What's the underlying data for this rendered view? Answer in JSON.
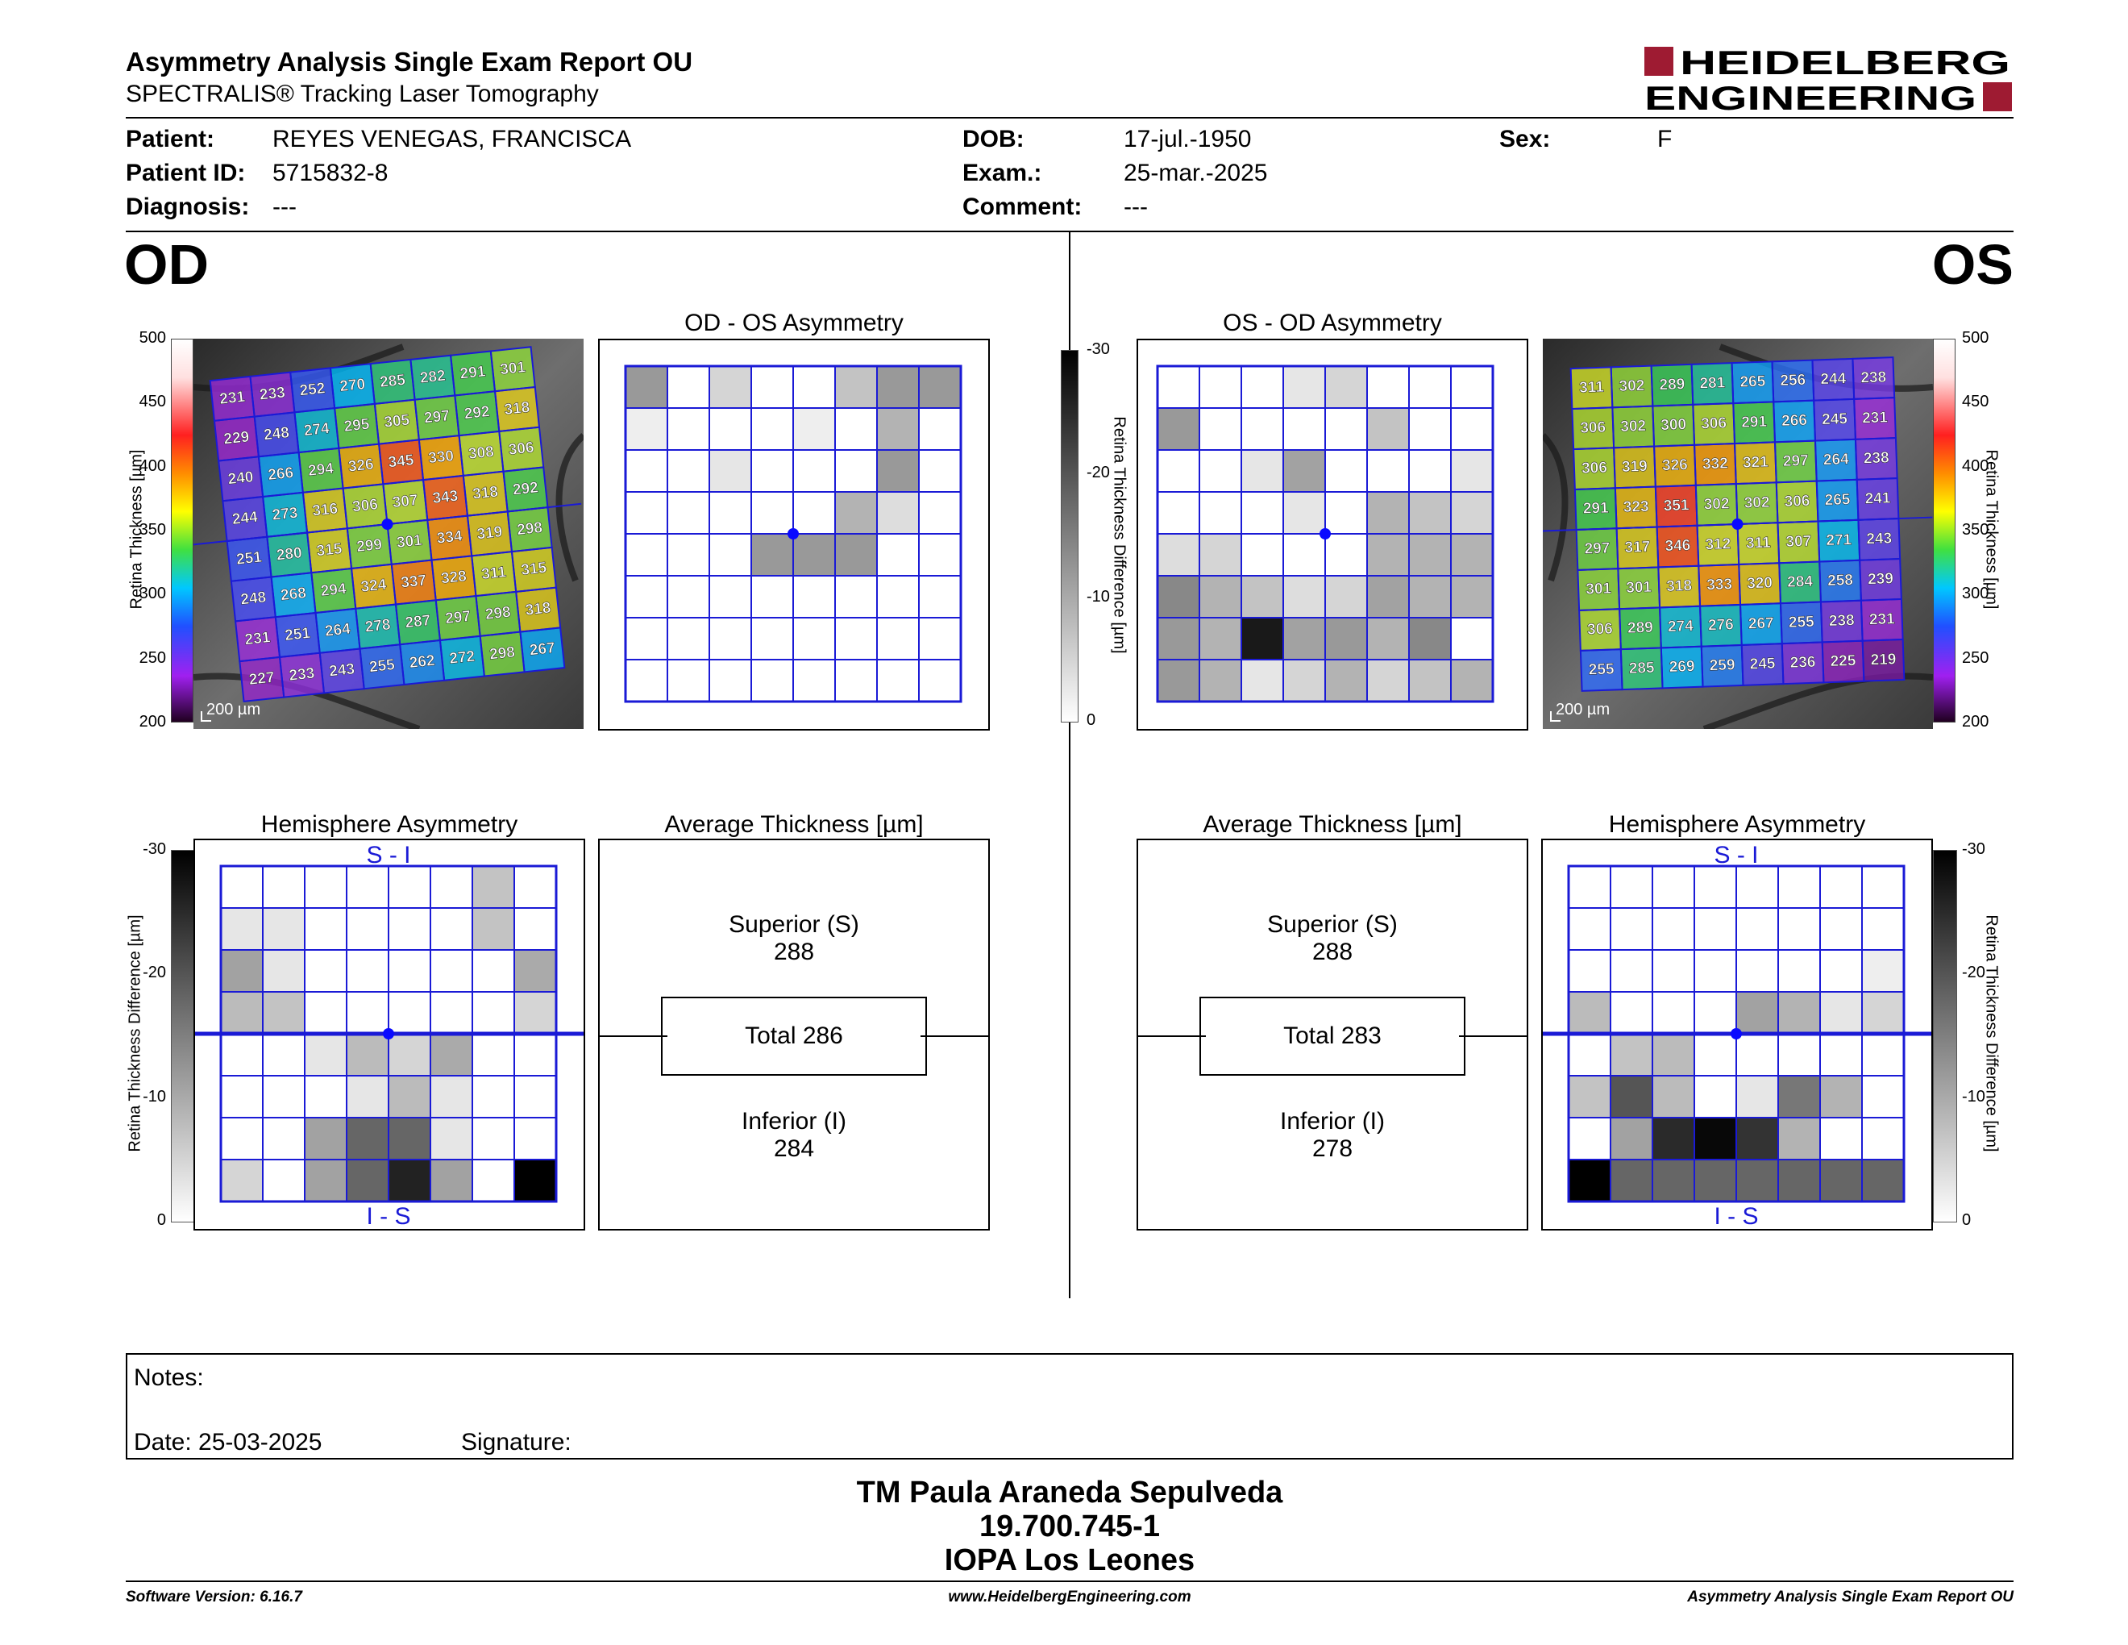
{
  "header": {
    "title": "Asymmetry Analysis Single Exam Report OU",
    "subtitle": "SPECTRALIS® Tracking Laser Tomography",
    "logo_line1": "HEIDELBERG",
    "logo_line2": "ENGINEERING"
  },
  "patient": {
    "patient_label": "Patient:",
    "patient_value": "REYES VENEGAS, FRANCISCA",
    "id_label": "Patient ID:",
    "id_value": "5715832-8",
    "diag_label": "Diagnosis:",
    "diag_value": "---",
    "dob_label": "DOB:",
    "dob_value": "17-jul.-1950",
    "exam_label": "Exam.:",
    "exam_value": "25-mar.-2025",
    "comment_label": "Comment:",
    "comment_value": "---",
    "sex_label": "Sex:",
    "sex_value": "F"
  },
  "eyes": {
    "od": "OD",
    "os": "OS"
  },
  "titles": {
    "od_os": "OD - OS Asymmetry",
    "os_od": "OS - OD Asymmetry",
    "hemi": "Hemisphere Asymmetry",
    "avg": "Average Thickness [µm]"
  },
  "scales": {
    "thickness_label": "Retina  Thickness [µm]",
    "thickness_ticks": [
      "500",
      "450",
      "400",
      "350",
      "300",
      "250",
      "200"
    ],
    "diff_label": "Retina Thickness Difference [µm]",
    "diff_ticks": [
      "-30",
      "-20",
      "-10",
      "0"
    ],
    "scalebar": "200 µm"
  },
  "hemi_labels": {
    "si": "S - I",
    "is": "I - S"
  },
  "od_thickness": [
    [
      "231",
      "233",
      "252",
      "270",
      "285",
      "282",
      "291",
      "301"
    ],
    [
      "229",
      "248",
      "274",
      "295",
      "305",
      "297",
      "292",
      "318"
    ],
    [
      "240",
      "266",
      "294",
      "326",
      "345",
      "330",
      "308",
      "306"
    ],
    [
      "244",
      "273",
      "316",
      "306",
      "307",
      "343",
      "318",
      "292"
    ],
    [
      "251",
      "280",
      "315",
      "299",
      "301",
      "334",
      "319",
      "298"
    ],
    [
      "248",
      "268",
      "294",
      "324",
      "337",
      "328",
      "311",
      "315"
    ],
    [
      "231",
      "251",
      "264",
      "278",
      "287",
      "297",
      "298",
      "318"
    ],
    [
      "227",
      "233",
      "243",
      "255",
      "262",
      "272",
      "298",
      "267"
    ]
  ],
  "os_thickness": [
    [
      "311",
      "302",
      "289",
      "281",
      "265",
      "256",
      "244",
      "238"
    ],
    [
      "306",
      "302",
      "300",
      "306",
      "291",
      "266",
      "245",
      "231"
    ],
    [
      "306",
      "319",
      "326",
      "332",
      "321",
      "297",
      "264",
      "238"
    ],
    [
      "291",
      "323",
      "351",
      "302",
      "302",
      "306",
      "265",
      "241"
    ],
    [
      "297",
      "317",
      "346",
      "312",
      "311",
      "307",
      "271",
      "243"
    ],
    [
      "301",
      "301",
      "318",
      "333",
      "320",
      "284",
      "258",
      "239"
    ],
    [
      "306",
      "289",
      "274",
      "276",
      "267",
      "255",
      "238",
      "231"
    ],
    [
      "255",
      "285",
      "269",
      "259",
      "245",
      "236",
      "225",
      "219"
    ]
  ],
  "grids": {
    "od_os_asym": [
      [
        12,
        0,
        5,
        0,
        0,
        7,
        12,
        12
      ],
      [
        2,
        0,
        0,
        0,
        2,
        0,
        9,
        0
      ],
      [
        0,
        0,
        3,
        0,
        0,
        0,
        12,
        0
      ],
      [
        0,
        0,
        0,
        0,
        0,
        9,
        4,
        0
      ],
      [
        0,
        0,
        0,
        12,
        12,
        12,
        0,
        0
      ],
      [
        0,
        0,
        0,
        0,
        0,
        0,
        0,
        0
      ],
      [
        0,
        0,
        0,
        0,
        0,
        0,
        0,
        0
      ],
      [
        0,
        0,
        0,
        0,
        0,
        0,
        0,
        0
      ]
    ],
    "os_od_asym": [
      [
        0,
        0,
        0,
        3,
        5,
        0,
        0,
        0
      ],
      [
        12,
        0,
        0,
        0,
        0,
        7,
        0,
        0
      ],
      [
        0,
        0,
        3,
        11,
        0,
        0,
        0,
        3
      ],
      [
        0,
        0,
        0,
        3,
        0,
        9,
        7,
        5
      ],
      [
        4,
        5,
        0,
        0,
        0,
        9,
        9,
        9
      ],
      [
        14,
        9,
        7,
        4,
        5,
        11,
        9,
        9
      ],
      [
        12,
        9,
        27,
        11,
        12,
        9,
        14,
        0
      ],
      [
        12,
        9,
        3,
        5,
        9,
        5,
        7,
        9
      ]
    ],
    "od_hemi": [
      [
        0,
        0,
        0,
        0,
        0,
        0,
        7,
        0
      ],
      [
        3,
        3,
        0,
        0,
        0,
        0,
        7,
        0
      ],
      [
        11,
        3,
        0,
        0,
        0,
        0,
        0,
        10
      ],
      [
        8,
        7,
        0,
        0,
        0,
        0,
        0,
        5
      ],
      [
        0,
        0,
        3,
        8,
        5,
        10,
        0,
        0
      ],
      [
        0,
        0,
        0,
        3,
        8,
        3,
        0,
        0
      ],
      [
        0,
        0,
        11,
        18,
        18,
        3,
        0,
        0
      ],
      [
        5,
        0,
        11,
        18,
        26,
        11,
        0,
        30
      ]
    ],
    "os_hemi": [
      [
        0,
        0,
        0,
        0,
        0,
        0,
        0,
        0
      ],
      [
        0,
        0,
        0,
        0,
        0,
        0,
        0,
        0
      ],
      [
        0,
        0,
        0,
        0,
        0,
        0,
        0,
        2
      ],
      [
        8,
        0,
        0,
        0,
        11,
        9,
        3,
        5
      ],
      [
        0,
        7,
        8,
        0,
        0,
        0,
        0,
        0
      ],
      [
        7,
        20,
        8,
        0,
        3,
        16,
        9,
        0
      ],
      [
        0,
        11,
        25,
        29,
        24,
        9,
        0,
        0
      ],
      [
        30,
        18,
        18,
        18,
        18,
        18,
        18,
        18
      ]
    ]
  },
  "avg": {
    "od": {
      "superior_label": "Superior (S)",
      "superior_value": "288",
      "total": "Total 286",
      "inferior_label": "Inferior (I)",
      "inferior_value": "284"
    },
    "os": {
      "superior_label": "Superior (S)",
      "superior_value": "288",
      "total": "Total 283",
      "inferior_label": "Inferior (I)",
      "inferior_value": "278"
    }
  },
  "notes": {
    "label": "Notes:",
    "date": "Date: 25-03-2025",
    "signature": "Signature:"
  },
  "operator": {
    "name": "TM Paula Araneda Sepulveda",
    "rut": "19.700.745-1",
    "institution": "IOPA Los Leones"
  },
  "footer": {
    "left": "Software Version: 6.16.7",
    "center": "www.HeidelbergEngineering.com",
    "right": "Asymmetry Analysis Single Exam Report OU"
  },
  "colors": {
    "grid_blue": "#1a1ad6",
    "logo_red": "#9e1b32",
    "fovea": "#0a0aff"
  }
}
